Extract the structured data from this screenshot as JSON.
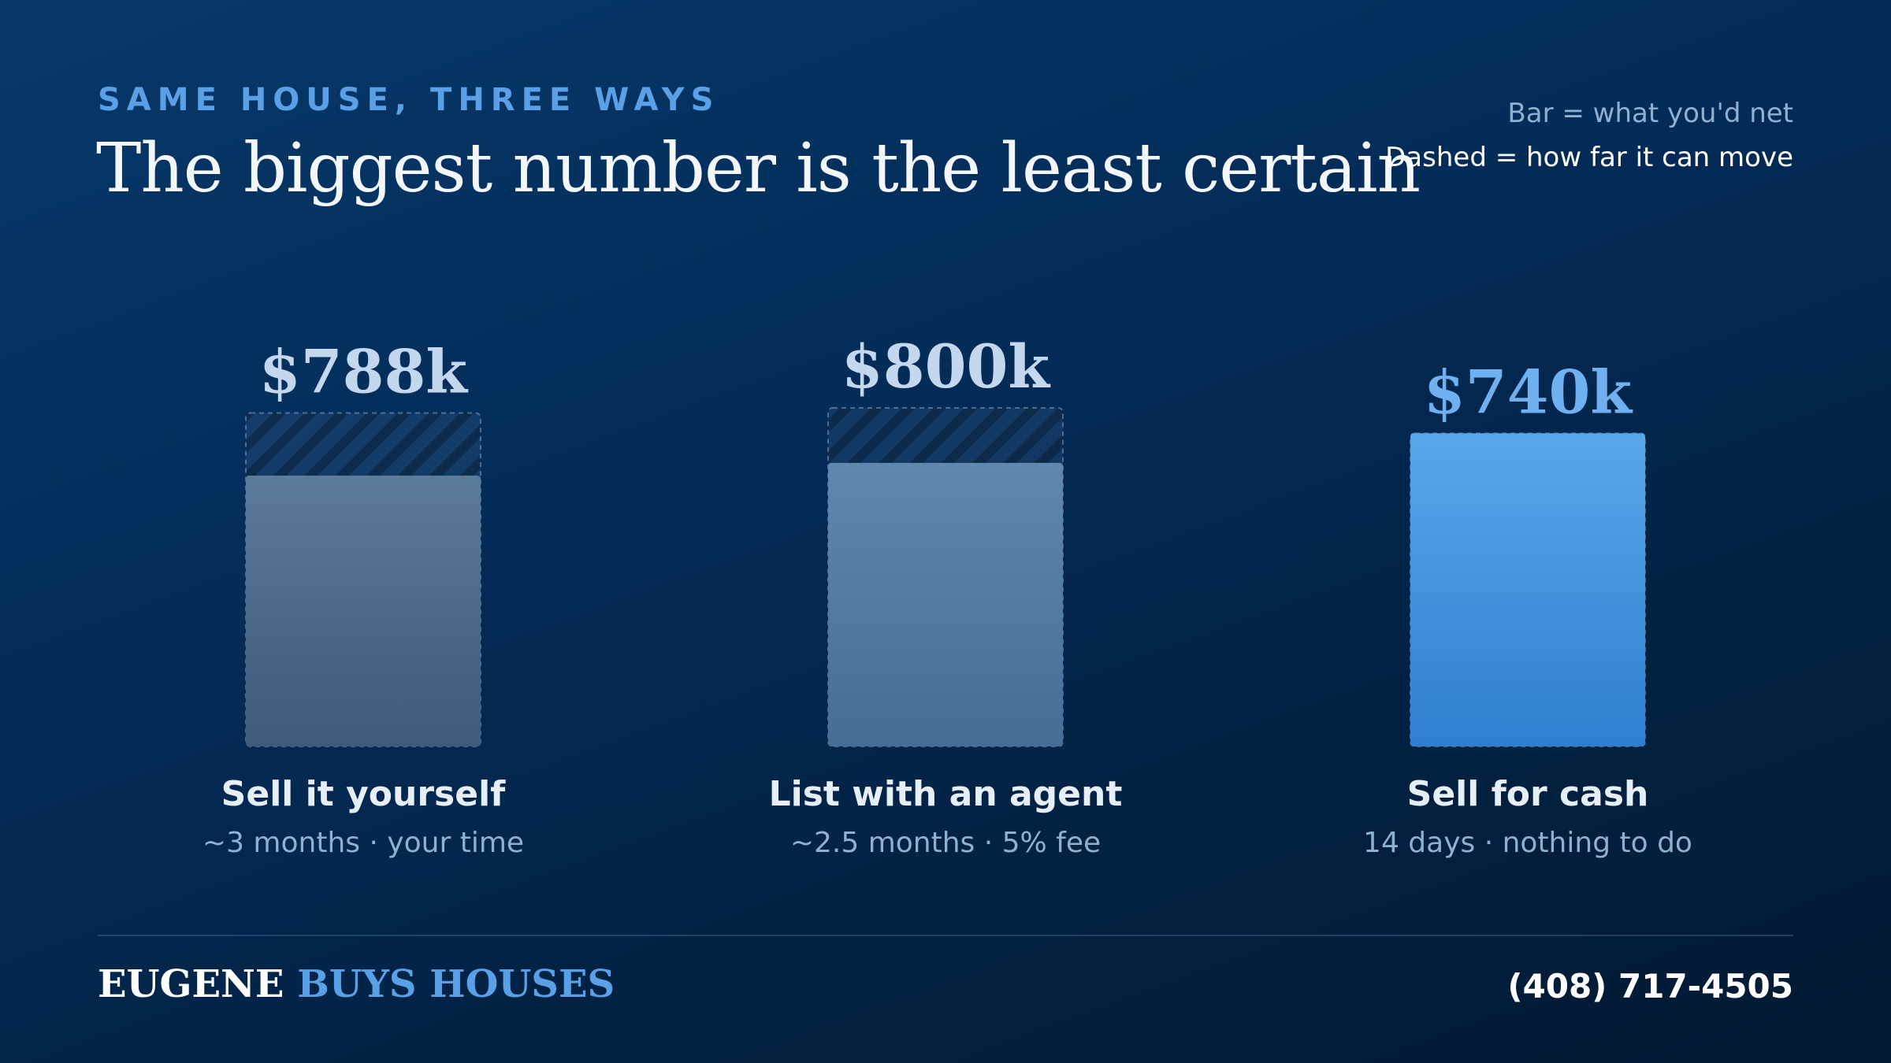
{
  "header": {
    "eyebrow": "SAME HOUSE, THREE WAYS",
    "title": "The biggest number is the least certain"
  },
  "legend": {
    "bar": "Bar = what you'd net",
    "dashed": "Dashed = how far it can move"
  },
  "chart_data": {
    "type": "bar",
    "categories": [
      "Sell it yourself",
      "List with an agent",
      "Sell for cash"
    ],
    "subtitles": [
      "~3 months · your time",
      "~2.5 months · 5% fee",
      "14 days · nothing to do"
    ],
    "headline_labels": [
      "$788k",
      "$800k",
      "$740k"
    ],
    "values": [
      640,
      670,
      740
    ],
    "range_max": [
      788,
      800,
      740
    ],
    "ylim": [
      0,
      800
    ],
    "colors": {
      "diy": "#4f6b8c",
      "agent": "#5b84ab",
      "cash": "#3f8fe0",
      "label_muted": "#c3d8ef",
      "label_cash": "#6fb0f0"
    }
  },
  "footer": {
    "brand_first": "EUGENE",
    "brand_second": "BUYS HOUSES",
    "phone": "(408) 717-4505"
  }
}
